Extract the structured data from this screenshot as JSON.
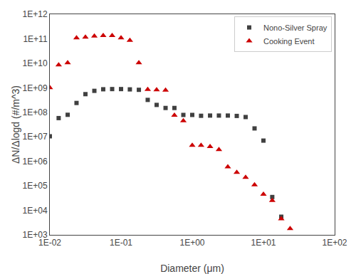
{
  "chart_data": {
    "type": "scatter",
    "xlabel": "Diameter (μm)",
    "ylabel": "ΔN/Δlogd (#/m^3)",
    "log": true,
    "grid": false,
    "legend": "upper right",
    "series": [
      {
        "name": "Nono-Silver Spray",
        "color": "#404040",
        "marker": "square",
        "x": [
          0.01,
          0.0133,
          0.0178,
          0.0237,
          0.0316,
          0.0422,
          0.0562,
          0.075,
          0.1,
          0.133,
          0.178,
          0.237,
          0.316,
          0.422,
          0.562,
          0.75,
          1.0,
          1.33,
          1.78,
          2.37,
          3.16,
          4.22,
          5.62,
          7.5,
          10.0,
          13.3,
          17.8
        ],
        "values": [
          10500000.0,
          58000000.0,
          79000000.0,
          240000000.0,
          550000000.0,
          750000000.0,
          870000000.0,
          885000000.0,
          885000000.0,
          860000000.0,
          825000000.0,
          320000000.0,
          200000000.0,
          150000000.0,
          150000000.0,
          78000000.0,
          78000000.0,
          72000000.0,
          73500000.0,
          73500000.0,
          73500000.0,
          71000000.0,
          64000000.0,
          22000000.0,
          7000000.0,
          35000.0,
          5500.0
        ]
      },
      {
        "name": "Cooking Event",
        "color": "#cc0000",
        "marker": "triangle",
        "x": [
          0.01,
          0.0133,
          0.0178,
          0.0237,
          0.0316,
          0.0422,
          0.0562,
          0.075,
          0.1,
          0.133,
          0.178,
          0.237,
          0.316,
          0.422,
          0.562,
          0.75,
          1.0,
          1.33,
          1.78,
          2.37,
          3.16,
          4.22,
          5.62,
          7.5,
          10.0,
          13.3,
          17.8,
          23.7
        ],
        "values": [
          1000000000.0,
          8500000000.0,
          10500000000.0,
          108000000000.0,
          115000000000.0,
          128000000000.0,
          135000000000.0,
          135000000000.0,
          108000000000.0,
          86000000000.0,
          10500000000.0,
          850000000.0,
          820000000.0,
          800000000.0,
          76000000.0,
          45000000.0,
          4500000.0,
          4500000.0,
          4000000.0,
          3000000.0,
          590000.0,
          350000.0,
          220000.0,
          110000.0,
          45000.0,
          25000.0,
          4500.0,
          1800.0
        ]
      }
    ],
    "xlim": [
      0.01,
      100
    ],
    "ylim": [
      1000,
      1000000000000
    ],
    "xticks": [
      {
        "value": 0.01,
        "label": "1E-02"
      },
      {
        "value": 0.1,
        "label": "1E-01"
      },
      {
        "value": 1,
        "label": "1E+00"
      },
      {
        "value": 10,
        "label": "1E+01"
      },
      {
        "value": 100,
        "label": "1E+02"
      }
    ],
    "yticks": [
      {
        "value": 1000,
        "label": "1E+03"
      },
      {
        "value": 10000,
        "label": "1E+04"
      },
      {
        "value": 100000,
        "label": "1E+05"
      },
      {
        "value": 1000000,
        "label": "1E+06"
      },
      {
        "value": 10000000,
        "label": "1E+07"
      },
      {
        "value": 100000000,
        "label": "1E+08"
      },
      {
        "value": 1000000000,
        "label": "1E+09"
      },
      {
        "value": 10000000000,
        "label": "1E+10"
      },
      {
        "value": 100000000000,
        "label": "1E+11"
      },
      {
        "value": 1000000000000,
        "label": "1E+12"
      }
    ]
  }
}
